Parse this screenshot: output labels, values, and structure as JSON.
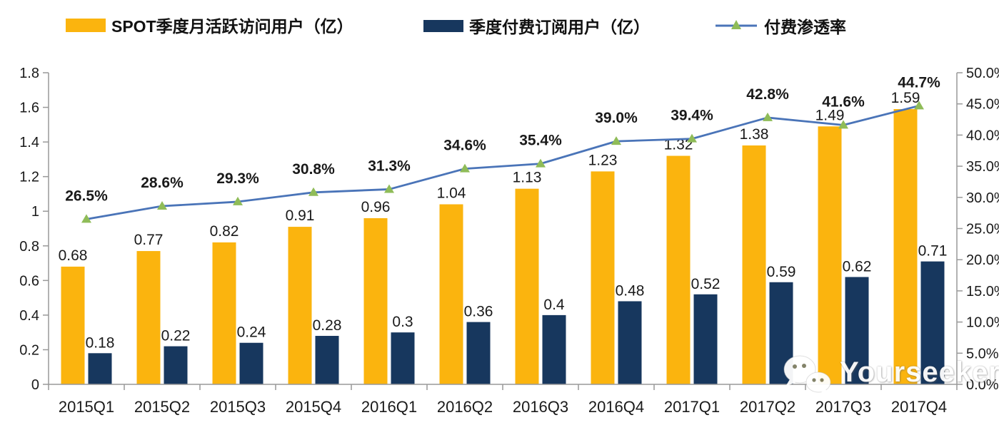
{
  "legend": {
    "items": [
      {
        "label": "SPOT季度月活跃访问用户（亿）",
        "type": "bar",
        "color": "#FBB40E"
      },
      {
        "label": "季度付费订阅用户（亿）",
        "type": "bar",
        "color": "#17375E"
      },
      {
        "label": "付费渗透率",
        "type": "line",
        "color": "#4A74B8",
        "marker_color": "#8FBC58"
      }
    ]
  },
  "chart_data": {
    "type": "combo-bar-line",
    "title": "",
    "categories": [
      "2015Q1",
      "2015Q2",
      "2015Q3",
      "2015Q4",
      "2016Q1",
      "2016Q2",
      "2016Q3",
      "2016Q4",
      "2017Q1",
      "2017Q2",
      "2017Q3",
      "2017Q4"
    ],
    "series": [
      {
        "name": "SPOT季度月活跃访问用户（亿）",
        "type": "bar",
        "axis": "left",
        "color": "#FBB40E",
        "values": [
          0.68,
          0.77,
          0.82,
          0.91,
          0.96,
          1.04,
          1.13,
          1.23,
          1.32,
          1.38,
          1.49,
          1.59
        ],
        "labels": [
          "0.68",
          "0.77",
          "0.82",
          "0.91",
          "0.96",
          "1.04",
          "1.13",
          "1.23",
          "1.32",
          "1.38",
          "1.49",
          "1.59"
        ]
      },
      {
        "name": "季度付费订阅用户（亿）",
        "type": "bar",
        "axis": "left",
        "color": "#17375E",
        "values": [
          0.18,
          0.22,
          0.24,
          0.28,
          0.3,
          0.36,
          0.4,
          0.48,
          0.52,
          0.59,
          0.62,
          0.71
        ],
        "labels": [
          "0.18",
          "0.22",
          "0.24",
          "0.28",
          "0.3",
          "0.36",
          "0.4",
          "0.48",
          "0.52",
          "0.59",
          "0.62",
          "0.71"
        ]
      },
      {
        "name": "付费渗透率",
        "type": "line",
        "axis": "right",
        "color": "#4A74B8",
        "marker": "triangle",
        "marker_color": "#8FBC58",
        "values": [
          26.5,
          28.6,
          29.3,
          30.8,
          31.3,
          34.6,
          35.4,
          39.0,
          39.4,
          42.8,
          41.6,
          44.7
        ],
        "labels": [
          "26.5%",
          "28.6%",
          "29.3%",
          "30.8%",
          "31.3%",
          "34.6%",
          "35.4%",
          "39.0%",
          "39.4%",
          "42.8%",
          "41.6%",
          "44.7%"
        ]
      }
    ],
    "left_axis": {
      "min": 0,
      "max": 1.8,
      "step": 0.2,
      "tick_labels": [
        "0",
        "0.2",
        "0.4",
        "0.6",
        "0.8",
        "1",
        "1.2",
        "1.4",
        "1.6",
        "1.8"
      ]
    },
    "right_axis": {
      "min": 0,
      "max": 50,
      "step": 5,
      "tick_labels": [
        "0.0%",
        "5.0%",
        "10.0%",
        "15.0%",
        "20.0%",
        "25.0%",
        "30.0%",
        "35.0%",
        "40.0%",
        "45.0%",
        "50.0%"
      ]
    },
    "grid": false,
    "legend_position": "top",
    "axis_color": "#999999",
    "label_color": "#1a1a1a",
    "background": "#FFFFFF"
  },
  "watermark": {
    "text": "Yourseeker",
    "icon": "wechat-icon"
  }
}
